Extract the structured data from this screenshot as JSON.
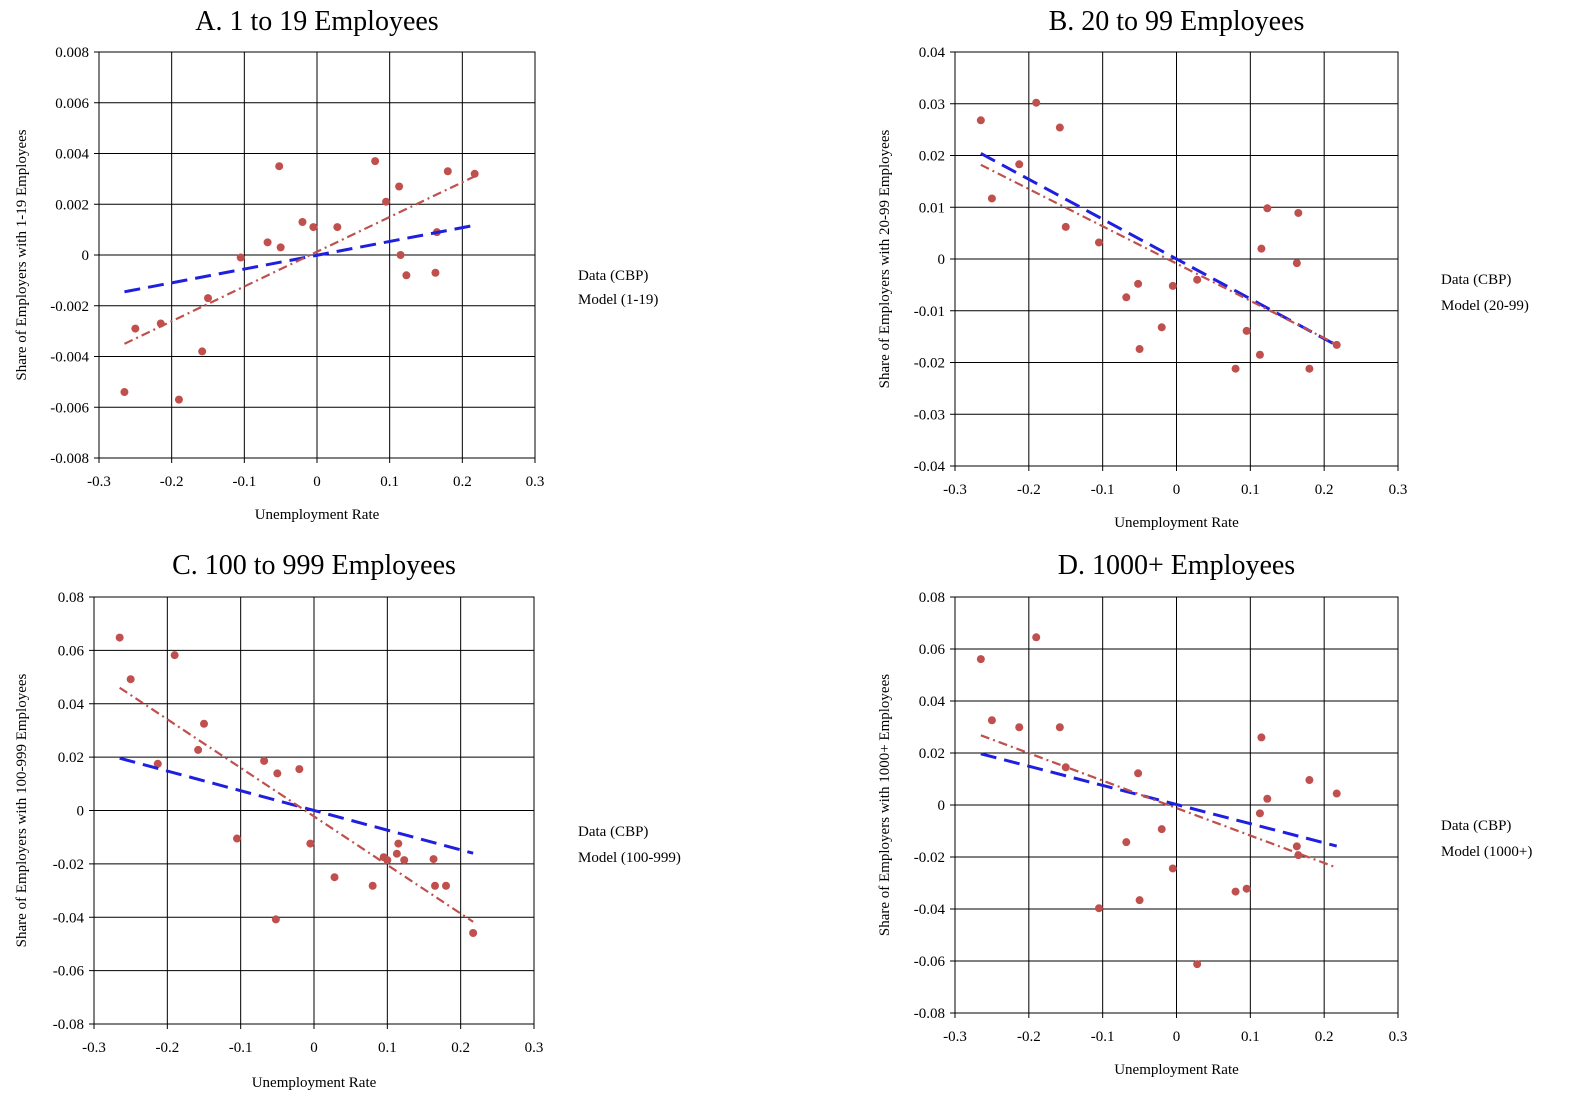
{
  "chart_data": [
    {
      "panel": "A",
      "type": "scatter",
      "title": "A.  1 to 19 Employees",
      "xlabel": "Unemployment Rate",
      "ylabel": "Share of Employers with 1-19 Employees",
      "xlim": [
        -0.3,
        0.3
      ],
      "ylim": [
        -0.008,
        0.008
      ],
      "xticks": [
        -0.3,
        -0.2,
        -0.1,
        0,
        0.1,
        0.2,
        0.3
      ],
      "xtick_labels": [
        "-0.3",
        "-0.2",
        "-0.1",
        "0",
        "0.1",
        "0.2",
        "0.3"
      ],
      "yticks": [
        -0.008,
        -0.006,
        -0.004,
        -0.002,
        0,
        0.002,
        0.004,
        0.006,
        0.008
      ],
      "ytick_labels": [
        "-0.008",
        "-0.006",
        "-0.004",
        "-0.002",
        "0",
        "0.002",
        "0.004",
        "0.006",
        "0.008"
      ],
      "grid": true,
      "legend_position": "right",
      "series": [
        {
          "name": "Data (CBP)",
          "kind": "points",
          "color": "#c0504d",
          "x": [
            -0.265,
            -0.25,
            -0.215,
            -0.19,
            -0.158,
            -0.15,
            -0.105,
            -0.068,
            -0.052,
            -0.05,
            -0.02,
            -0.005,
            0.028,
            0.08,
            0.095,
            0.113,
            0.115,
            0.123,
            0.163,
            0.165,
            0.18,
            0.217
          ],
          "y": [
            -0.0054,
            -0.0029,
            -0.0027,
            -0.0057,
            -0.0038,
            -0.0017,
            -0.0001,
            0.0005,
            0.0035,
            0.0003,
            0.0013,
            0.0011,
            0.0011,
            0.0037,
            0.0021,
            0.0027,
            0.0,
            -0.0008,
            -0.0007,
            0.0009,
            0.0033,
            0.0032
          ]
        },
        {
          "name": "Model (1-19)",
          "kind": "line",
          "color": "#1f1fe0",
          "x": [
            -0.265,
            0.217
          ],
          "y": [
            -0.00145,
            0.00117
          ]
        },
        {
          "name": "",
          "kind": "trendline",
          "color": "#c0504d",
          "x": [
            -0.265,
            0.217
          ],
          "y": [
            -0.0035,
            0.0031
          ]
        }
      ]
    },
    {
      "panel": "B",
      "type": "scatter",
      "title": "B.  20 to 99 Employees",
      "xlabel": "Unemployment Rate",
      "ylabel": "Share of Employers with 20-99 Employees",
      "xlim": [
        -0.3,
        0.3
      ],
      "ylim": [
        -0.04,
        0.04
      ],
      "xticks": [
        -0.3,
        -0.2,
        -0.1,
        0,
        0.1,
        0.2,
        0.3
      ],
      "xtick_labels": [
        "-0.3",
        "-0.2",
        "-0.1",
        "0",
        "0.1",
        "0.2",
        "0.3"
      ],
      "yticks": [
        -0.04,
        -0.03,
        -0.02,
        -0.01,
        0,
        0.01,
        0.02,
        0.03,
        0.04
      ],
      "ytick_labels": [
        "-0.04",
        "-0.03",
        "-0.02",
        "-0.01",
        "0",
        "0.01",
        "0.02",
        "0.03",
        "0.04"
      ],
      "grid": true,
      "legend_position": "right",
      "series": [
        {
          "name": "Data (CBP)",
          "kind": "points",
          "color": "#c0504d",
          "x": [
            -0.265,
            -0.25,
            -0.213,
            -0.19,
            -0.158,
            -0.15,
            -0.105,
            -0.068,
            -0.052,
            -0.05,
            -0.02,
            -0.005,
            0.028,
            0.08,
            0.095,
            0.113,
            0.115,
            0.123,
            0.163,
            0.165,
            0.18,
            0.217
          ],
          "y": [
            0.0268,
            0.0117,
            0.0183,
            0.0302,
            0.0254,
            0.0062,
            0.0032,
            -0.0074,
            -0.0048,
            -0.0174,
            -0.0132,
            -0.0052,
            -0.004,
            -0.0212,
            -0.0139,
            -0.0185,
            0.002,
            0.0098,
            -0.0008,
            0.0089,
            -0.0212,
            -0.0166
          ]
        },
        {
          "name": "Model (20-99)",
          "kind": "line",
          "color": "#1f1fe0",
          "x": [
            -0.265,
            0.217
          ],
          "y": [
            0.0204,
            -0.0167
          ]
        },
        {
          "name": "",
          "kind": "trendline",
          "color": "#c0504d",
          "x": [
            -0.265,
            0.217
          ],
          "y": [
            0.0182,
            -0.0165
          ]
        }
      ]
    },
    {
      "panel": "C",
      "type": "scatter",
      "title": "C.  100 to 999 Employees",
      "xlabel": "Unemployment Rate",
      "ylabel": "Share of Employers with 100-999 Employees",
      "xlim": [
        -0.3,
        0.3
      ],
      "ylim": [
        -0.08,
        0.08
      ],
      "xticks": [
        -0.3,
        -0.2,
        -0.1,
        0,
        0.1,
        0.2,
        0.3
      ],
      "xtick_labels": [
        "-0.3",
        "-0.2",
        "-0.1",
        "0",
        "0.1",
        "0.2",
        "0.3"
      ],
      "yticks": [
        -0.08,
        -0.06,
        -0.04,
        -0.02,
        0,
        0.02,
        0.04,
        0.06,
        0.08
      ],
      "ytick_labels": [
        "-0.08",
        "-0.06",
        "-0.04",
        "-0.02",
        "0",
        "0.02",
        "0.04",
        "0.06",
        "0.08"
      ],
      "grid": true,
      "legend_position": "right",
      "series": [
        {
          "name": "Data (CBP)",
          "kind": "points",
          "color": "#c0504d",
          "x": [
            -0.265,
            -0.25,
            -0.213,
            -0.19,
            -0.158,
            -0.15,
            -0.105,
            -0.068,
            -0.052,
            -0.05,
            -0.02,
            -0.005,
            0.028,
            0.08,
            0.095,
            0.1,
            0.113,
            0.115,
            0.123,
            0.163,
            0.165,
            0.18,
            0.217
          ],
          "y": [
            0.0648,
            0.0492,
            0.0175,
            0.0582,
            0.0227,
            0.0325,
            -0.0105,
            0.0186,
            -0.0408,
            0.0139,
            0.0155,
            -0.0124,
            -0.025,
            -0.0282,
            -0.0175,
            -0.0186,
            -0.0162,
            -0.0124,
            -0.0186,
            -0.0182,
            -0.0282,
            -0.0282,
            -0.0459
          ]
        },
        {
          "name": "Model (100-999)",
          "kind": "line",
          "color": "#1f1fe0",
          "x": [
            -0.265,
            0.217
          ],
          "y": [
            0.0196,
            -0.016
          ]
        },
        {
          "name": "",
          "kind": "trendline",
          "color": "#c0504d",
          "x": [
            -0.265,
            0.217
          ],
          "y": [
            0.046,
            -0.0417
          ]
        }
      ]
    },
    {
      "panel": "D",
      "type": "scatter",
      "title": "D.  1000+ Employees",
      "xlabel": "Unemployment Rate",
      "ylabel": "Share of Employers with 1000+ Employees",
      "xlim": [
        -0.3,
        0.3
      ],
      "ylim": [
        -0.08,
        0.08
      ],
      "xticks": [
        -0.3,
        -0.2,
        -0.1,
        0,
        0.1,
        0.2,
        0.3
      ],
      "xtick_labels": [
        "-0.3",
        "-0.2",
        "-0.1",
        "0",
        "0.1",
        "0.2",
        "0.3"
      ],
      "yticks": [
        -0.08,
        -0.06,
        -0.04,
        -0.02,
        0,
        0.02,
        0.04,
        0.06,
        0.08
      ],
      "ytick_labels": [
        "-0.08",
        "-0.06",
        "-0.04",
        "-0.02",
        "0",
        "0.02",
        "0.04",
        "0.06",
        "0.08"
      ],
      "grid": true,
      "legend_position": "right",
      "series": [
        {
          "name": "Data (CBP)",
          "kind": "points",
          "color": "#c0504d",
          "x": [
            -0.265,
            -0.25,
            -0.213,
            -0.19,
            -0.158,
            -0.15,
            -0.105,
            -0.068,
            -0.052,
            -0.05,
            -0.02,
            -0.005,
            0.028,
            0.08,
            0.095,
            0.113,
            0.115,
            0.123,
            0.163,
            0.165,
            0.18,
            0.217
          ],
          "y": [
            0.0561,
            0.0326,
            0.0299,
            0.0645,
            0.0299,
            0.0145,
            -0.0397,
            -0.0143,
            0.0122,
            -0.0366,
            -0.0093,
            -0.0244,
            -0.0612,
            -0.0333,
            -0.0322,
            -0.0032,
            0.026,
            0.0024,
            -0.0159,
            -0.0193,
            0.0096,
            0.0044
          ]
        },
        {
          "name": "Model (1000+)",
          "kind": "line",
          "color": "#1f1fe0",
          "x": [
            -0.265,
            0.217
          ],
          "y": [
            0.0197,
            -0.0158
          ]
        },
        {
          "name": "",
          "kind": "trendline",
          "color": "#c0504d",
          "x": [
            -0.265,
            0.217
          ],
          "y": [
            0.0268,
            -0.0241
          ]
        }
      ]
    }
  ]
}
